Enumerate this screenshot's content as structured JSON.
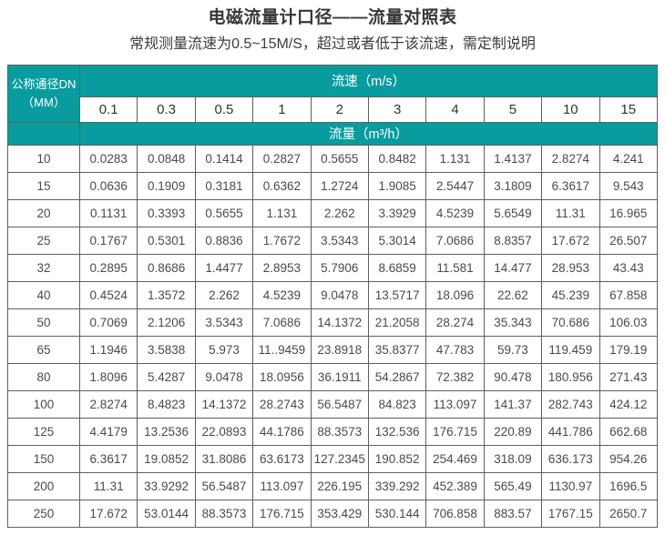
{
  "title": "电磁流量计口径——流量对照表",
  "subtitle": "常规测量流速为0.5~15M/S，超过或者低于该流速，需定制说明",
  "colors": {
    "header_teal": "#089c9e",
    "grid_line": "#5f5f5f",
    "header_text": "#ffffff",
    "body_text": "#4a4a4a"
  },
  "table": {
    "corner_line1": "公称通径DN",
    "corner_line2": "（MM）",
    "velocity_band_label": "流速（m/s）",
    "flow_band_label": "流量（m³/h）",
    "velocities": [
      "0.1",
      "0.3",
      "0.5",
      "1",
      "2",
      "3",
      "4",
      "5",
      "10",
      "15"
    ],
    "rows": [
      {
        "dn": "10",
        "values": [
          "0.0283",
          "0.0848",
          "0.1414",
          "0.2827",
          "0.5655",
          "0.8482",
          "1.131",
          "1.4137",
          "2.8274",
          "4.241"
        ]
      },
      {
        "dn": "15",
        "values": [
          "0.0636",
          "0.1909",
          "0.3181",
          "0.6362",
          "1.2724",
          "1.9085",
          "2.5447",
          "3.1809",
          "6.3617",
          "9.543"
        ]
      },
      {
        "dn": "20",
        "values": [
          "0.1131",
          "0.3393",
          "0.5655",
          "1.131",
          "2.262",
          "3.3929",
          "4.5239",
          "5.6549",
          "11.31",
          "16.965"
        ]
      },
      {
        "dn": "25",
        "values": [
          "0.1767",
          "0.5301",
          "0.8836",
          "1.7672",
          "3.5343",
          "5.3014",
          "7.0686",
          "8.8357",
          "17.672",
          "26.507"
        ]
      },
      {
        "dn": "32",
        "values": [
          "0.2895",
          "0.8686",
          "1.4477",
          "2.8953",
          "5.7906",
          "8.6859",
          "11.581",
          "14.477",
          "28.953",
          "43.43"
        ]
      },
      {
        "dn": "40",
        "values": [
          "0.4524",
          "1.3572",
          "2.262",
          "4.5239",
          "9.0478",
          "13.5717",
          "18.096",
          "22.62",
          "45.239",
          "67.858"
        ]
      },
      {
        "dn": "50",
        "values": [
          "0.7069",
          "2.1206",
          "3.5343",
          "7.0686",
          "14.1372",
          "21.2058",
          "28.274",
          "35.343",
          "70.686",
          "106.03"
        ]
      },
      {
        "dn": "65",
        "values": [
          "1.1946",
          "3.5838",
          "5.973",
          "11..9459",
          "23.8918",
          "35.8377",
          "47.783",
          "59.73",
          "119.459",
          "179.19"
        ]
      },
      {
        "dn": "80",
        "values": [
          "1.8096",
          "5.4287",
          "9.0478",
          "18.0956",
          "36.1911",
          "54.2867",
          "72.382",
          "90.478",
          "180.956",
          "271.43"
        ]
      },
      {
        "dn": "100",
        "values": [
          "2.8274",
          "8.4823",
          "14.1372",
          "28.2743",
          "56.5487",
          "84.823",
          "113.097",
          "141.37",
          "282.743",
          "424.12"
        ]
      },
      {
        "dn": "125",
        "values": [
          "4.4179",
          "13.2536",
          "22.0893",
          "44.1786",
          "88.3573",
          "132.536",
          "176.715",
          "220.89",
          "441.786",
          "662.68"
        ]
      },
      {
        "dn": "150",
        "values": [
          "6.3617",
          "19.0852",
          "31.8086",
          "63.6173",
          "127.2345",
          "190.852",
          "254.469",
          "318.09",
          "636.173",
          "954.26"
        ]
      },
      {
        "dn": "200",
        "values": [
          "11.31",
          "33.9292",
          "56.5487",
          "113.097",
          "226.195",
          "339.292",
          "452.389",
          "565.49",
          "1130.97",
          "1696.5"
        ]
      },
      {
        "dn": "250",
        "values": [
          "17.672",
          "53.0144",
          "88.3573",
          "176.715",
          "353.429",
          "530.144",
          "706.858",
          "883.57",
          "1767.15",
          "2650.7"
        ]
      }
    ]
  }
}
